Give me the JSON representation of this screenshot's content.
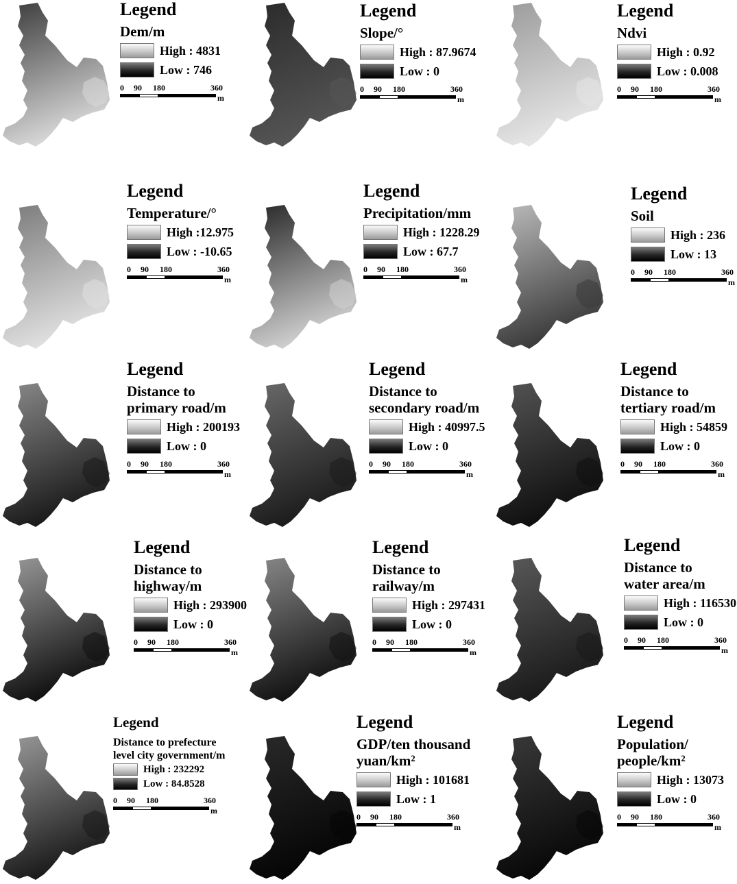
{
  "legend_title": "Legend",
  "scale_bar": {
    "ticks": [
      "0",
      "90",
      "180",
      "360"
    ],
    "unit": "m"
  },
  "colors": {
    "background": "#ffffff",
    "high": "#f4f4f4",
    "low": "#000000"
  },
  "panels": [
    {
      "layer": "Dem/m",
      "high": "High : 4831",
      "low": "Low : 746",
      "shade": [
        "#d8d8d8",
        "#3a3a3a"
      ]
    },
    {
      "layer": "Slope/°",
      "high": "High : 87.9674",
      "low": "Low : 0",
      "shade": [
        "#555555",
        "#2a2a2a"
      ]
    },
    {
      "layer": "Ndvi",
      "high": "High : 0.92",
      "low": "Low : 0.008",
      "shade": [
        "#e6e6e6",
        "#9a9a9a"
      ]
    },
    {
      "layer": "Temperature/°",
      "high": "High :12.975",
      "low": "Low : -10.65",
      "shade": [
        "#e0e0e0",
        "#7a7a7a"
      ]
    },
    {
      "layer": "Precipitation/mm",
      "high": "High : 1228.29",
      "low": "Low : 67.7",
      "shade": [
        "#cfcfcf",
        "#262626"
      ]
    },
    {
      "layer": "Soil",
      "high": "High : 236",
      "low": "Low : 13",
      "shade": [
        "#3a3a3a",
        "#bcbcbc"
      ]
    },
    {
      "layer": [
        "Distance to",
        "primary road/m"
      ],
      "high": "High : 200193",
      "low": "Low : 0",
      "shade": [
        "#1a1a1a",
        "#8a8a8a"
      ]
    },
    {
      "layer": [
        "Distance to",
        "secondary road/m"
      ],
      "high": "High : 40997.5",
      "low": "Low : 0",
      "shade": [
        "#1c1c1c",
        "#6a6a6a"
      ]
    },
    {
      "layer": [
        "Distance to",
        "tertiary road/m"
      ],
      "high": "High : 54859",
      "low": "Low : 0",
      "shade": [
        "#0f0f0f",
        "#555555"
      ]
    },
    {
      "layer": [
        "Distance to",
        "highway/m"
      ],
      "high": "High : 293900",
      "low": "Low : 0",
      "shade": [
        "#101010",
        "#9a9a9a"
      ]
    },
    {
      "layer": [
        "Distance to",
        "railway/m"
      ],
      "high": "High : 297431",
      "low": "Low : 0",
      "shade": [
        "#121212",
        "#8a8a8a"
      ]
    },
    {
      "layer": [
        "Distance to",
        "water area/m"
      ],
      "high": "High : 116530",
      "low": "Low : 0",
      "shade": [
        "#1a1a1a",
        "#5a5a5a"
      ]
    },
    {
      "layer": [
        "Distance to prefecture",
        "level city government/m"
      ],
      "high": "High : 232292",
      "low": "Low : 84.8528",
      "shade": [
        "#1a1a1a",
        "#9a9a9a"
      ]
    },
    {
      "layer": [
        "GDP/ten thousand",
        " yuan/km²"
      ],
      "high": "High : 101681",
      "low": "Low : 1",
      "shade": [
        "#050505",
        "#2a2a2a"
      ]
    },
    {
      "layer": [
        "Population/",
        "people/km²"
      ],
      "high": "High : 13073",
      "low": "Low : 0",
      "shade": [
        "#080808",
        "#3a3a3a"
      ]
    }
  ]
}
